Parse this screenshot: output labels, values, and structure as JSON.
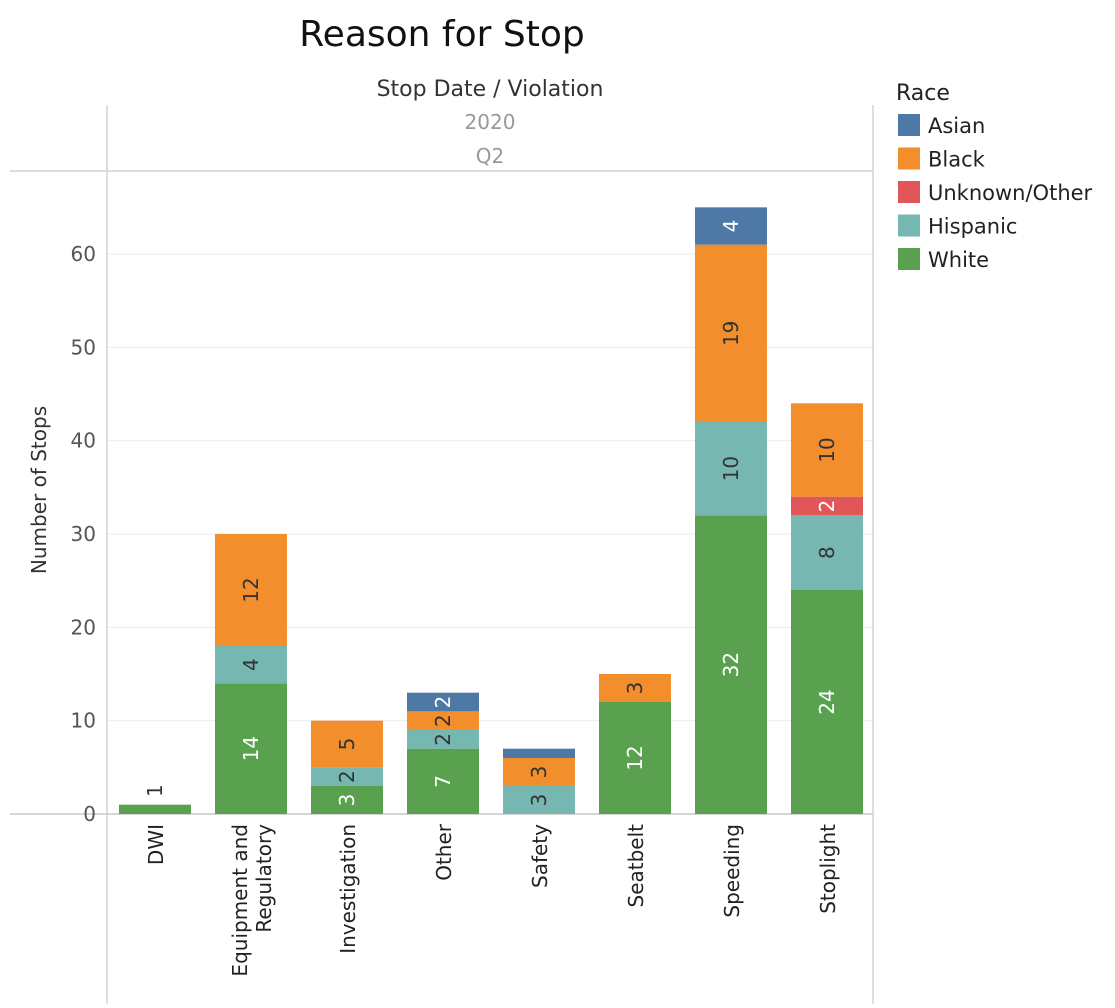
{
  "chart_data": {
    "type": "bar",
    "stacked": true,
    "title": "Reason for Stop",
    "column_header": "Stop Date / Violation",
    "column_header_year": "2020",
    "column_header_quarter": "Q2",
    "ylabel": "Number of Stops",
    "ylim": [
      0,
      70
    ],
    "yticks": [
      0,
      10,
      20,
      30,
      40,
      50,
      60
    ],
    "grid": true,
    "legend_title": "Race",
    "legend_position": "right",
    "categories": [
      [
        "DWI"
      ],
      [
        "Equipment and",
        "Regulatory"
      ],
      [
        "Investigation"
      ],
      [
        "Other"
      ],
      [
        "Safety"
      ],
      [
        "Seatbelt"
      ],
      [
        "Speeding"
      ],
      [
        "Stoplight"
      ]
    ],
    "series": [
      {
        "name": "White",
        "color": "#59a14f",
        "label_color": "#ffffff",
        "values": [
          1,
          14,
          3,
          7,
          0,
          12,
          32,
          24
        ]
      },
      {
        "name": "Hispanic",
        "color": "#76b7b2",
        "label_color": "#333333",
        "values": [
          0,
          4,
          2,
          2,
          3,
          0,
          10,
          8
        ]
      },
      {
        "name": "Unknown/Other",
        "color": "#e15759",
        "label_color": "#ffffff",
        "values": [
          0,
          0,
          0,
          0,
          0,
          0,
          0,
          2
        ]
      },
      {
        "name": "Black",
        "color": "#f28e2b",
        "label_color": "#333333",
        "values": [
          0,
          12,
          5,
          2,
          3,
          3,
          19,
          10
        ]
      },
      {
        "name": "Asian",
        "color": "#4e79a7",
        "label_color": "#ffffff",
        "values": [
          0,
          0,
          0,
          2,
          1,
          0,
          4,
          0
        ]
      }
    ],
    "legend_order": [
      "Asian",
      "Black",
      "Unknown/Other",
      "Hispanic",
      "White"
    ],
    "labels": [
      {
        "category": 0,
        "series": "White",
        "text": "1",
        "above": true
      },
      {
        "category": 1,
        "series": "White",
        "text": "14"
      },
      {
        "category": 1,
        "series": "Hispanic",
        "text": "4"
      },
      {
        "category": 1,
        "series": "Black",
        "text": "12"
      },
      {
        "category": 2,
        "series": "White",
        "text": "3"
      },
      {
        "category": 2,
        "series": "Hispanic",
        "text": "2"
      },
      {
        "category": 2,
        "series": "Black",
        "text": "5"
      },
      {
        "category": 3,
        "series": "White",
        "text": "7"
      },
      {
        "category": 3,
        "series": "Hispanic",
        "text": "2"
      },
      {
        "category": 3,
        "series": "Black",
        "text": "2"
      },
      {
        "category": 3,
        "series": "Asian",
        "text": "2"
      },
      {
        "category": 4,
        "series": "Hispanic",
        "text": "3"
      },
      {
        "category": 4,
        "series": "Black",
        "text": "3"
      },
      {
        "category": 5,
        "series": "White",
        "text": "12"
      },
      {
        "category": 5,
        "series": "Black",
        "text": "3"
      },
      {
        "category": 6,
        "series": "White",
        "text": "32"
      },
      {
        "category": 6,
        "series": "Hispanic",
        "text": "10"
      },
      {
        "category": 6,
        "series": "Black",
        "text": "19"
      },
      {
        "category": 6,
        "series": "Asian",
        "text": "4"
      },
      {
        "category": 7,
        "series": "White",
        "text": "24"
      },
      {
        "category": 7,
        "series": "Hispanic",
        "text": "8"
      },
      {
        "category": 7,
        "series": "Unknown/Other",
        "text": "2"
      },
      {
        "category": 7,
        "series": "Black",
        "text": "10"
      }
    ]
  }
}
